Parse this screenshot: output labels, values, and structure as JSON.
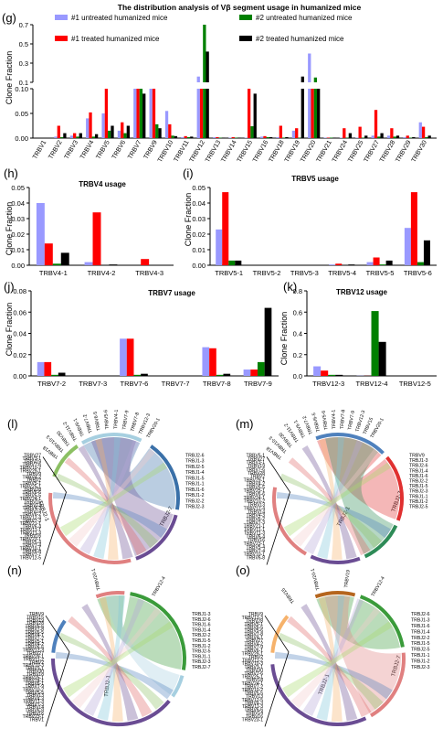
{
  "colors": {
    "untreated1": "#9999ff",
    "treated1": "#ff0000",
    "untreated2": "#008000",
    "treated2": "#000000"
  },
  "chart_data": [
    {
      "panel": "(g)",
      "type": "bar",
      "title": "The distribution analysis of Vβ segment usage in humanized mice",
      "ylabel": "Clone Fraction",
      "broken_axis": {
        "lower": [
          0,
          0.1
        ],
        "upper": [
          0.1,
          0.7
        ]
      },
      "yticks_lower": [
        "0.00",
        "0.05",
        "0.10"
      ],
      "yticks_upper": [
        "0.1",
        "0.3",
        "0.5",
        "0.7"
      ],
      "legend": [
        "#1 untreated  humanized mice",
        "#2 untreated  humanized mice",
        "#1 treated  humanized mice",
        "#2 treated  humanized mice"
      ],
      "categories": [
        "TRBV1",
        "TRBV2",
        "TRBV3",
        "TRBV4",
        "TRBV5",
        "TRBV6",
        "TRBV7",
        "TRBV9",
        "TRBV10",
        "TRBV11",
        "TRBV12",
        "TRBV13",
        "TRBV14",
        "TRBV15",
        "TRBV16",
        "TRBV18",
        "TRBV19",
        "TRBV20",
        "TRBV21",
        "TRBV24",
        "TRBV25",
        "TRBV27",
        "TRBV28",
        "TRBV29",
        "TRBV30"
      ],
      "series": [
        {
          "name": "#1 untreated  humanized mice",
          "color": "#9999ff",
          "values": [
            0,
            0.003,
            0.005,
            0.04,
            0.05,
            0.015,
            0.1,
            0.1,
            0.055,
            0.002,
            0.16,
            0.002,
            0.001,
            0.001,
            0.003,
            0.002,
            0.015,
            0.4,
            0.001,
            0.001,
            0.001,
            0.005,
            0.005,
            0.002,
            0.032
          ]
        },
        {
          "name": "#1 treated  humanized mice",
          "color": "#ff0000",
          "values": [
            0,
            0.025,
            0.01,
            0.052,
            0.1,
            0.032,
            0.1,
            0.1,
            0.028,
            0.004,
            0.1,
            0.002,
            0.002,
            0.1,
            0.004,
            0.025,
            0.02,
            0.1,
            0.001,
            0.02,
            0.023,
            0.057,
            0.02,
            0.005,
            0.023
          ]
        },
        {
          "name": "#2 untreated  humanized mice",
          "color": "#008000",
          "values": [
            0,
            0.002,
            0.003,
            0.003,
            0.015,
            0.01,
            0.1,
            0.028,
            0.005,
            0.002,
            0.73,
            0.001,
            0.001,
            0.024,
            0.002,
            0.001,
            0.001,
            0.15,
            0.001,
            0.001,
            0.001,
            0.003,
            0.003,
            0.001,
            0.002
          ]
        },
        {
          "name": "#2 treated  humanized mice",
          "color": "#000000",
          "values": [
            0,
            0.01,
            0.01,
            0.008,
            0.025,
            0.025,
            0.09,
            0.02,
            0.004,
            0.003,
            0.42,
            0.001,
            0.001,
            0.09,
            0.002,
            0.002,
            0.16,
            0.1,
            0.001,
            0.01,
            0.005,
            0.01,
            0.005,
            0.002,
            0.005
          ]
        }
      ]
    },
    {
      "panel": "(h)",
      "type": "bar",
      "title": "TRBV4 usage",
      "ylabel": "Clone Fraction",
      "ylim": [
        0,
        0.05
      ],
      "yticks": [
        "0.00",
        "0.01",
        "0.02",
        "0.03",
        "0.04",
        "0.05"
      ],
      "categories": [
        "TRBV4-1",
        "TRBV4-2",
        "TRBV4-3"
      ],
      "series": [
        {
          "color": "#9999ff",
          "values": [
            0.04,
            0.002,
            0
          ]
        },
        {
          "color": "#ff0000",
          "values": [
            0.014,
            0.034,
            0.004
          ]
        },
        {
          "color": "#008000",
          "values": [
            0.001,
            0,
            0
          ]
        },
        {
          "color": "#000000",
          "values": [
            0.008,
            0.0005,
            0
          ]
        }
      ]
    },
    {
      "panel": "(i)",
      "type": "bar",
      "title": "TRBV5 usage",
      "ylabel": "Clone Fraction",
      "ylim": [
        0,
        0.05
      ],
      "yticks": [
        "0.00",
        "0.01",
        "0.02",
        "0.03",
        "0.04",
        "0.05"
      ],
      "categories": [
        "TRBV5-1",
        "TRBV5-2",
        "TRBV5-3",
        "TRBV5-4",
        "TRBV5-5",
        "TRBV5-6"
      ],
      "series": [
        {
          "color": "#9999ff",
          "values": [
            0.023,
            0,
            0,
            0.0005,
            0.002,
            0.024
          ]
        },
        {
          "color": "#ff0000",
          "values": [
            0.047,
            0,
            0,
            0.001,
            0.005,
            0.047
          ]
        },
        {
          "color": "#008000",
          "values": [
            0.003,
            0,
            0,
            0,
            0.0005,
            0.002
          ]
        },
        {
          "color": "#000000",
          "values": [
            0.003,
            0,
            0,
            0.0005,
            0.003,
            0.016
          ]
        }
      ]
    },
    {
      "panel": "(j)",
      "type": "bar",
      "title": "TRBV7 usage",
      "ylabel": "Clone Fraction",
      "ylim": [
        0,
        0.08
      ],
      "yticks": [
        "0.00",
        "0.02",
        "0.04",
        "0.06",
        "0.08"
      ],
      "categories": [
        "TRBV7-2",
        "TRBV7-3",
        "TRBV7-6",
        "TRBV7-7",
        "TRBV7-8",
        "TRBV7-9"
      ],
      "series": [
        {
          "color": "#9999ff",
          "values": [
            0.013,
            0,
            0.035,
            0,
            0.027,
            0.006
          ]
        },
        {
          "color": "#ff0000",
          "values": [
            0.013,
            0,
            0.035,
            0,
            0.026,
            0.006
          ]
        },
        {
          "color": "#008000",
          "values": [
            0.001,
            0,
            0.001,
            0,
            0.001,
            0.013
          ]
        },
        {
          "color": "#000000",
          "values": [
            0.003,
            0,
            0.002,
            0,
            0.002,
            0.064
          ]
        }
      ]
    },
    {
      "panel": "(k)",
      "type": "bar",
      "title": "TRBV12 usage",
      "ylabel": "Clone Fraction",
      "ylim": [
        0,
        0.8
      ],
      "yticks": [
        "0.0",
        "0.2",
        "0.4",
        "0.6",
        "0.8"
      ],
      "categories": [
        "TRBV12-3",
        "TRBV12-4",
        "TRBV12-5"
      ],
      "series": [
        {
          "color": "#9999ff",
          "values": [
            0.09,
            0.002,
            0
          ]
        },
        {
          "color": "#ff0000",
          "values": [
            0.05,
            0.001,
            0
          ]
        },
        {
          "color": "#008000",
          "values": [
            0.01,
            0.61,
            0
          ]
        },
        {
          "color": "#000000",
          "values": [
            0.01,
            0.32,
            0
          ]
        }
      ]
    }
  ],
  "chords": [
    {
      "panel": "(l)",
      "v_top": [
        "TRBV20-1",
        "TRBV12-3",
        "TRBV7-8",
        "TRBV7-9",
        "TRBV4-1",
        "TRBV5-6",
        "TRBV6-5",
        "TRBV7-2",
        "TRBV6-1",
        "TRBV11-2",
        "TRBV30",
        "TRBV10-3",
        "TRBV18"
      ],
      "v_left": [
        "TRBV27",
        "TRBV3-1",
        "TRBV19",
        "TRBV7-6",
        "TRBV10-2",
        "TRBV29-1",
        "TRBV9",
        "TRBV4-2",
        "TRBV2",
        "TRBV5-1",
        "TRBV25-1",
        "TRBV28",
        "TRBV6-6",
        "TRBV5-5",
        "TRBV24-1",
        "TRBV15",
        "TRBV13",
        "TRBV4-3",
        "TRBV14",
        "TRBV6-2",
        "TRBV12-4",
        "TRBV7-3",
        "TRBV21-1",
        "TRBV6-4",
        "TRBV11-1",
        "TRBV11-3",
        "TRBV16",
        "TRBV23-1",
        "TRBV5-4",
        "TRBV7-4",
        "TRBV10-1",
        "TRBV6-8",
        "TRBV7-7",
        "TRBV12-5"
      ],
      "j_right": [
        "TRBJ2-6",
        "TRBJ1-3",
        "TRBJ2-5",
        "TRBJ1-4",
        "TRBJ1-5",
        "TRBJ1-1",
        "TRBJ1-6",
        "TRBJ1-2",
        "TRBJ2-2",
        "TRBJ2-3"
      ],
      "arc_labels": [
        "TRBJ2-1",
        "TRBJ2-7"
      ]
    },
    {
      "panel": "(m)",
      "v_top": [
        "TRBV20-1",
        "TRBV15",
        "TRBV12-3",
        "TRBV7-9",
        "TRBV7-8",
        "TRBV4-1",
        "TRBV5-6",
        "TRBV6-5",
        "TRBV7-2",
        "TRBV6-1",
        "TRBV11-2",
        "TRBV30",
        "TRBV10-3",
        "TRBV18"
      ],
      "v_left": [
        "TRBV5-1",
        "TRBV27",
        "TRBV3-1",
        "TRBV19",
        "TRBV7-6",
        "TRBV28",
        "TRBV2",
        "TRBV29-1",
        "TRBV4-2",
        "TRBV5-5",
        "TRBV25-1",
        "TRBV6-6",
        "TRBV24-1",
        "TRBV10-2",
        "TRBV13",
        "TRBV12-4",
        "TRBV14",
        "TRBV4-3",
        "TRBV6-2",
        "TRBV7-3",
        "TRBV21-1",
        "TRBV11-1",
        "TRBV11-3",
        "TRBV6-4",
        "TRBV16",
        "TRBV23-1",
        "TRBV5-4",
        "TRBV7-4",
        "TRBV10-1",
        "TRBV6-8"
      ],
      "j_right": [
        "TRBV9",
        "TRBJ1-3",
        "TRBJ2-6",
        "TRBJ1-4",
        "TRBJ1-6",
        "TRBJ2-2",
        "TRBJ1-5",
        "TRBJ2-3",
        "TRBJ1-1",
        "TRBJ1-2",
        "TRBJ2-5"
      ],
      "arc_labels": [
        "TRBJ2-1",
        "TRBJ2-7"
      ]
    },
    {
      "panel": "(n)",
      "v_top": [
        "TRBV12-4",
        "TRBV20-1"
      ],
      "v_left": [
        "TRBV9",
        "TRBV15",
        "TRBV19",
        "TRBV28",
        "TRBV5-6",
        "TRBV7-8",
        "TRBV6-5",
        "TRBV4-1",
        "TRBV7-2",
        "TRBV5-1",
        "TRBV4-2",
        "TRBV6-6",
        "TRBV12-3",
        "TRBV27",
        "TRBV29-1",
        "TRBV11-2",
        "TRBV2",
        "TRBV10-3",
        "TRBV3-1",
        "TRBV30",
        "TRBV18",
        "TRBV25-1",
        "TRBV24-1",
        "TRBV6-1",
        "TRBV7-9",
        "TRBV10-2",
        "TRBV5-5",
        "TRBV13",
        "TRBV4-3",
        "TRBV11-3",
        "TRBV7-3",
        "TRBV14",
        "TRBV6-8",
        "TRBV16",
        "TRBV23-1",
        "TRBV1"
      ],
      "j_right": [
        "TRBJ1-3",
        "TRBJ2-6",
        "TRBJ1-6",
        "TRBJ1-4",
        "TRBJ2-2",
        "TRBJ1-5",
        "TRBJ1-2",
        "TRBJ2-5",
        "TRBJ1-1",
        "TRBJ2-3",
        "TRBJ2-7"
      ],
      "arc_labels": [
        "TRBJ2-1"
      ]
    },
    {
      "panel": "(o)",
      "v_top": [
        "TRBV12-4",
        "TRBV19",
        "TRBV20-1",
        "TRBV15"
      ],
      "v_left": [
        "TRBV9",
        "TRBV12-3",
        "TRBV28",
        "TRBV5-1",
        "TRBV6-5",
        "TRBV5-6",
        "TRBV7-8",
        "TRBV4-1",
        "TRBV27",
        "TRBV4-2",
        "TRBV7-9",
        "TRBV6-1",
        "TRBV29-1",
        "TRBV2",
        "TRBV11-2",
        "TRBV10-3",
        "TRBV3-1",
        "TRBV30",
        "TRBV7-6",
        "TRBV25-1",
        "TRBV18",
        "TRBV24-1",
        "TRBV7-2",
        "TRBV10-2",
        "TRBV5-5",
        "TRBV13",
        "TRBV12-5",
        "TRBV4-3",
        "TRBV11-3",
        "TRBV6-6",
        "TRBV14",
        "TRBV16",
        "TRBV23-1"
      ],
      "j_right": [
        "TRBJ2-6",
        "TRBJ1-3",
        "TRBJ1-6",
        "TRBJ1-4",
        "TRBJ2-2",
        "TRBJ1-5",
        "TRBJ2-5",
        "TRBJ1-1",
        "TRBJ1-2",
        "TRBJ2-3"
      ],
      "arc_labels": [
        "TRBJ2-1",
        "TRBJ2-7"
      ]
    }
  ]
}
